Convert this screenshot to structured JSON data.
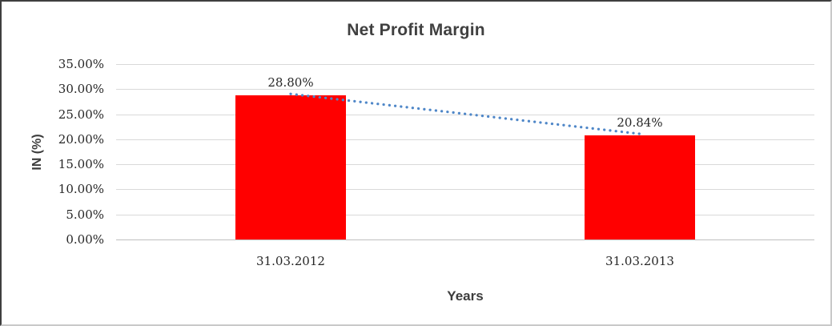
{
  "chart_data": {
    "type": "bar",
    "title": "Net Profit Margin",
    "xlabel": "Years",
    "ylabel": "IN (%)",
    "categories": [
      "31.03.2012",
      "31.03.2013"
    ],
    "values": [
      28.8,
      20.84
    ],
    "data_labels": [
      "28.80%",
      "20.84%"
    ],
    "ylim": [
      0,
      35
    ],
    "ytick_step": 5,
    "ytick_labels": [
      "35.00%",
      "30.00%",
      "25.00%",
      "20.00%",
      "15.00%",
      "10.00%",
      "5.00%",
      "0.00%"
    ],
    "grid": true,
    "legend_position": "none",
    "bar_color": "#ff0000",
    "gridline_color": "#d9d9d9",
    "trendline": {
      "type": "linear",
      "style": "dotted",
      "color": "#4f87c8"
    }
  }
}
